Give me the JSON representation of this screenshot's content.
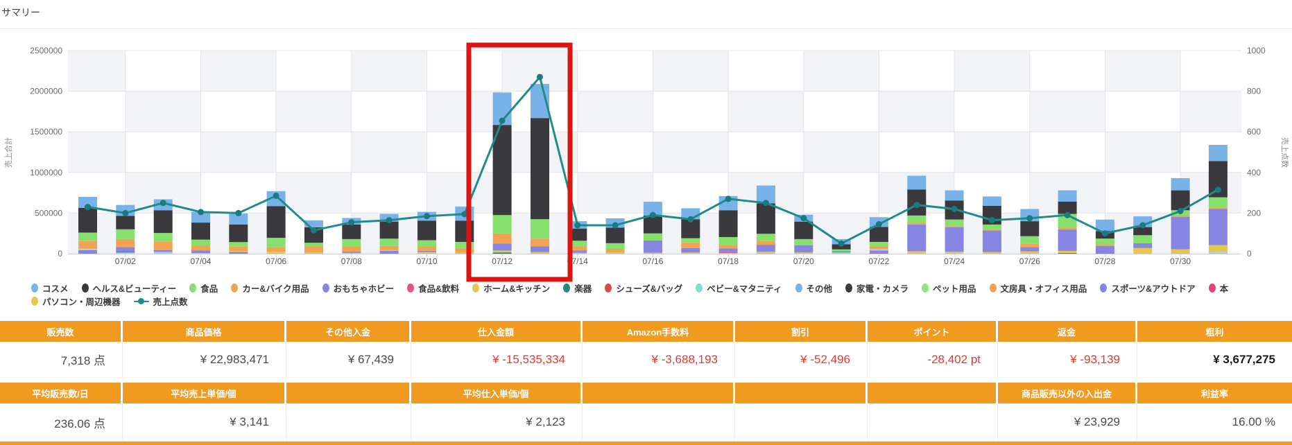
{
  "title": "サマリー",
  "chart_data": {
    "type": "stacked-bar+line",
    "title": "",
    "left_axis": {
      "label": "売上合計",
      "ticks": [
        2500000,
        2000000,
        1500000,
        1000000,
        500000,
        0
      ],
      "max": 2500000
    },
    "right_axis": {
      "label": "売上点数",
      "ticks": [
        1000,
        800,
        600,
        400,
        200,
        0
      ],
      "max": 1000
    },
    "x_tick_labels": [
      "07/02",
      "07/04",
      "07/06",
      "07/08",
      "07/10",
      "07/12",
      "07/14",
      "07/16",
      "07/18",
      "07/20",
      "07/22",
      "07/24",
      "07/26",
      "07/28",
      "07/30"
    ],
    "line_series_name": "売上点数",
    "line_color": "#208b8b",
    "line_dot_color": "#1b7a80",
    "highlight": {
      "dates": "07/12 - 07/13",
      "color": "#dd1511"
    },
    "colors": {
      "blue": "#79b2e8",
      "dark": "#3a3a3e",
      "green": "#86e06c",
      "orange": "#f2a351",
      "purple": "#8686e2",
      "yellow": "#e2c84e",
      "lightblue": "#a6d2f0",
      "red": "#e05050",
      "teal": "#23897d",
      "pink": "#e8558a"
    },
    "days": [
      {
        "date": "07/01",
        "points": 230,
        "segments": [
          [
            "purple",
            45000
          ],
          [
            "lightblue",
            15000
          ],
          [
            "orange",
            95000
          ],
          [
            "green",
            105000
          ],
          [
            "dark",
            305000
          ],
          [
            "blue",
            135000
          ]
        ]
      },
      {
        "date": "07/02",
        "points": 200,
        "segments": [
          [
            "lightblue",
            15000
          ],
          [
            "teal",
            10000
          ],
          [
            "purple",
            55000
          ],
          [
            "orange",
            100000
          ],
          [
            "green",
            120000
          ],
          [
            "dark",
            165000
          ],
          [
            "blue",
            135000
          ]
        ]
      },
      {
        "date": "07/03",
        "points": 250,
        "segments": [
          [
            "lightblue",
            20000
          ],
          [
            "purple",
            25000
          ],
          [
            "orange",
            105000
          ],
          [
            "green",
            105000
          ],
          [
            "dark",
            280000
          ],
          [
            "blue",
            135000
          ]
        ]
      },
      {
        "date": "07/04",
        "points": 205,
        "segments": [
          [
            "yellow",
            8000
          ],
          [
            "purple",
            30000
          ],
          [
            "orange",
            60000
          ],
          [
            "green",
            75000
          ],
          [
            "dark",
            210000
          ],
          [
            "blue",
            132000
          ]
        ]
      },
      {
        "date": "07/05",
        "points": 200,
        "segments": [
          [
            "purple",
            22000
          ],
          [
            "yellow",
            10000
          ],
          [
            "orange",
            55000
          ],
          [
            "green",
            55000
          ],
          [
            "dark",
            218000
          ],
          [
            "blue",
            135000
          ]
        ]
      },
      {
        "date": "07/06",
        "points": 285,
        "segments": [
          [
            "yellow",
            25000
          ],
          [
            "orange",
            55000
          ],
          [
            "green",
            115000
          ],
          [
            "dark",
            390000
          ],
          [
            "blue",
            185000
          ]
        ]
      },
      {
        "date": "07/07",
        "points": 115,
        "segments": [
          [
            "yellow",
            15000
          ],
          [
            "orange",
            75000
          ],
          [
            "green",
            45000
          ],
          [
            "dark",
            190000
          ],
          [
            "blue",
            85000
          ]
        ]
      },
      {
        "date": "07/08",
        "points": 155,
        "segments": [
          [
            "lightblue",
            10000
          ],
          [
            "purple",
            15000
          ],
          [
            "orange",
            65000
          ],
          [
            "green",
            90000
          ],
          [
            "dark",
            180000
          ],
          [
            "blue",
            80000
          ]
        ]
      },
      {
        "date": "07/09",
        "points": 165,
        "segments": [
          [
            "purple",
            35000
          ],
          [
            "yellow",
            10000
          ],
          [
            "orange",
            50000
          ],
          [
            "green",
            90000
          ],
          [
            "dark",
            210000
          ],
          [
            "blue",
            95000
          ]
        ]
      },
      {
        "date": "07/10",
        "points": 185,
        "segments": [
          [
            "yellow",
            20000
          ],
          [
            "purple",
            15000
          ],
          [
            "orange",
            55000
          ],
          [
            "green",
            75000
          ],
          [
            "dark",
            240000
          ],
          [
            "blue",
            110000
          ]
        ]
      },
      {
        "date": "07/11",
        "points": 195,
        "segments": [
          [
            "yellow",
            15000
          ],
          [
            "orange",
            50000
          ],
          [
            "green",
            80000
          ],
          [
            "dark",
            260000
          ],
          [
            "blue",
            175000
          ]
        ]
      },
      {
        "date": "07/12",
        "points": 655,
        "segments": [
          [
            "teal",
            15000
          ],
          [
            "yellow",
            25000
          ],
          [
            "purple",
            85000
          ],
          [
            "orange",
            125000
          ],
          [
            "green",
            225000
          ],
          [
            "dark",
            1110000
          ],
          [
            "blue",
            400000
          ]
        ]
      },
      {
        "date": "07/13",
        "points": 870,
        "segments": [
          [
            "yellow",
            20000
          ],
          [
            "purple",
            70000
          ],
          [
            "orange",
            95000
          ],
          [
            "green",
            240000
          ],
          [
            "dark",
            1245000
          ],
          [
            "blue",
            420000
          ]
        ]
      },
      {
        "date": "07/14",
        "points": 140,
        "segments": [
          [
            "yellow",
            10000
          ],
          [
            "purple",
            30000
          ],
          [
            "orange",
            50000
          ],
          [
            "green",
            70000
          ],
          [
            "dark",
            150000
          ],
          [
            "blue",
            90000
          ]
        ]
      },
      {
        "date": "07/15",
        "points": 140,
        "segments": [
          [
            "yellow",
            15000
          ],
          [
            "orange",
            45000
          ],
          [
            "green",
            70000
          ],
          [
            "dark",
            190000
          ],
          [
            "blue",
            115000
          ]
        ]
      },
      {
        "date": "07/16",
        "points": 190,
        "segments": [
          [
            "yellow",
            12000
          ],
          [
            "purple",
            150000
          ],
          [
            "green",
            88000
          ],
          [
            "dark",
            220000
          ],
          [
            "blue",
            170000
          ]
        ]
      },
      {
        "date": "07/17",
        "points": 170,
        "segments": [
          [
            "yellow",
            15000
          ],
          [
            "purple",
            55000
          ],
          [
            "orange",
            65000
          ],
          [
            "green",
            55000
          ],
          [
            "dark",
            235000
          ],
          [
            "blue",
            135000
          ]
        ]
      },
      {
        "date": "07/18",
        "points": 270,
        "segments": [
          [
            "yellow",
            10000
          ],
          [
            "red",
            10000
          ],
          [
            "purple",
            45000
          ],
          [
            "orange",
            45000
          ],
          [
            "green",
            95000
          ],
          [
            "dark",
            330000
          ],
          [
            "blue",
            175000
          ]
        ]
      },
      {
        "date": "07/19",
        "points": 250,
        "segments": [
          [
            "yellow",
            25000
          ],
          [
            "purple",
            85000
          ],
          [
            "orange",
            45000
          ],
          [
            "green",
            90000
          ],
          [
            "dark",
            375000
          ],
          [
            "blue",
            220000
          ]
        ]
      },
      {
        "date": "07/20",
        "points": 175,
        "segments": [
          [
            "yellow",
            15000
          ],
          [
            "purple",
            90000
          ],
          [
            "green",
            75000
          ],
          [
            "dark",
            215000
          ],
          [
            "blue",
            85000
          ]
        ]
      },
      {
        "date": "07/21",
        "points": 50,
        "segments": [
          [
            "yellow",
            8000
          ],
          [
            "lightblue",
            10000
          ],
          [
            "teal",
            10000
          ],
          [
            "green",
            25000
          ],
          [
            "dark",
            62000
          ],
          [
            "blue",
            65000
          ]
        ]
      },
      {
        "date": "07/22",
        "points": 145,
        "segments": [
          [
            "pink",
            12000
          ],
          [
            "purple",
            28000
          ],
          [
            "lightblue",
            15000
          ],
          [
            "orange",
            30000
          ],
          [
            "green",
            60000
          ],
          [
            "dark",
            185000
          ],
          [
            "blue",
            120000
          ]
        ]
      },
      {
        "date": "07/23",
        "points": 240,
        "segments": [
          [
            "yellow",
            30000
          ],
          [
            "purple",
            330000
          ],
          [
            "orange",
            20000
          ],
          [
            "green",
            90000
          ],
          [
            "dark",
            320000
          ],
          [
            "blue",
            170000
          ]
        ]
      },
      {
        "date": "07/24",
        "points": 220,
        "segments": [
          [
            "yellow",
            25000
          ],
          [
            "purple",
            300000
          ],
          [
            "orange",
            15000
          ],
          [
            "green",
            80000
          ],
          [
            "dark",
            235000
          ],
          [
            "blue",
            125000
          ]
        ]
      },
      {
        "date": "07/25",
        "points": 165,
        "segments": [
          [
            "yellow",
            20000
          ],
          [
            "purple",
            265000
          ],
          [
            "orange",
            15000
          ],
          [
            "green",
            60000
          ],
          [
            "dark",
            230000
          ],
          [
            "blue",
            115000
          ]
        ]
      },
      {
        "date": "07/26",
        "points": 175,
        "segments": [
          [
            "yellow",
            30000
          ],
          [
            "purple",
            50000
          ],
          [
            "orange",
            40000
          ],
          [
            "green",
            95000
          ],
          [
            "dark",
            185000
          ],
          [
            "blue",
            150000
          ]
        ]
      },
      {
        "date": "07/27",
        "points": 190,
        "segments": [
          [
            "red",
            10000
          ],
          [
            "yellow",
            25000
          ],
          [
            "purple",
            265000
          ],
          [
            "orange",
            20000
          ],
          [
            "green",
            170000
          ],
          [
            "dark",
            150000
          ],
          [
            "blue",
            140000
          ]
        ]
      },
      {
        "date": "07/28",
        "points": 100,
        "segments": [
          [
            "red",
            8000
          ],
          [
            "purple",
            88000
          ],
          [
            "orange",
            18000
          ],
          [
            "green",
            72000
          ],
          [
            "dark",
            94000
          ],
          [
            "blue",
            140000
          ]
        ]
      },
      {
        "date": "07/29",
        "points": 140,
        "segments": [
          [
            "yellow",
            70000
          ],
          [
            "purple",
            58000
          ],
          [
            "green",
            100000
          ],
          [
            "dark",
            100000
          ],
          [
            "blue",
            132000
          ]
        ]
      },
      {
        "date": "07/30",
        "points": 210,
        "segments": [
          [
            "yellow",
            55000
          ],
          [
            "purple",
            400000
          ],
          [
            "orange",
            10000
          ],
          [
            "green",
            70000
          ],
          [
            "dark",
            245000
          ],
          [
            "blue",
            150000
          ]
        ]
      },
      {
        "date": "07/31",
        "points": 315,
        "segments": [
          [
            "lightblue",
            20000
          ],
          [
            "yellow",
            85000
          ],
          [
            "purple",
            445000
          ],
          [
            "orange",
            15000
          ],
          [
            "green",
            130000
          ],
          [
            "dark",
            445000
          ],
          [
            "blue",
            200000
          ]
        ]
      }
    ]
  },
  "legend": {
    "row1": [
      {
        "label": "コスメ",
        "color": "#79b2e8",
        "marker": "dot"
      },
      {
        "label": "ヘルス&ビューティー",
        "color": "#3a3a3e",
        "marker": "dot"
      },
      {
        "label": "食品",
        "color": "#86e06c",
        "marker": "dot"
      },
      {
        "label": "カー&バイク用品",
        "color": "#f2a351",
        "marker": "dot"
      },
      {
        "label": "おもちゃホビー",
        "color": "#8686e2",
        "marker": "dot"
      },
      {
        "label": "食品&飲料",
        "color": "#e8547e",
        "marker": "dot"
      },
      {
        "label": "ホーム&キッチン",
        "color": "#e2c84e",
        "marker": "dot"
      },
      {
        "label": "楽器",
        "color": "#23897d",
        "marker": "dot"
      },
      {
        "label": "シューズ&バッグ",
        "color": "#e04848",
        "marker": "dot"
      },
      {
        "label": "ベビー&マタニティ",
        "color": "#7fe0d0",
        "marker": "dot"
      },
      {
        "label": "その他",
        "color": "#79b2e8",
        "marker": "dot"
      },
      {
        "label": "家電・カメラ",
        "color": "#3a3a3e",
        "marker": "dot"
      },
      {
        "label": "ペット用品",
        "color": "#8ce870",
        "marker": "dot"
      },
      {
        "label": "文房具・オフィス用品",
        "color": "#f2a351",
        "marker": "dot"
      },
      {
        "label": "スポーツ&アウトドア",
        "color": "#8686e2",
        "marker": "dot"
      },
      {
        "label": "本",
        "color": "#e8407a",
        "marker": "dot"
      }
    ],
    "row2": [
      {
        "label": "パソコン・周辺機器",
        "color": "#e2c84e",
        "marker": "dot"
      },
      {
        "label": "売上点数",
        "color": "#208b8b",
        "marker": "line"
      }
    ]
  },
  "tables": [
    {
      "headers": [
        "販売数",
        "商品価格",
        "その他入金",
        "仕入金額",
        "Amazon手数料",
        "割引",
        "ポイント",
        "返金",
        "粗利"
      ],
      "values": [
        {
          "text": "7,318 点"
        },
        {
          "text": "¥ 22,983,471"
        },
        {
          "text": "¥ 67,439"
        },
        {
          "text": "¥ -15,535,334",
          "neg": true
        },
        {
          "text": "¥ -3,688,193",
          "neg": true
        },
        {
          "text": "¥ -52,496",
          "neg": true
        },
        {
          "text": "-28,402 pt",
          "neg": true
        },
        {
          "text": "¥ -93,139",
          "neg": true
        },
        {
          "text": "¥ 3,677,275",
          "bold": true
        }
      ]
    },
    {
      "headers": [
        "平均販売数/日",
        "平均売上単価/個",
        "",
        "平均仕入単価/個",
        "",
        "",
        "",
        "商品販売以外の入出金",
        "利益率"
      ],
      "values": [
        {
          "text": "236.06 点"
        },
        {
          "text": "¥ 3,141"
        },
        {
          "text": ""
        },
        {
          "text": "¥ 2,123"
        },
        {
          "text": ""
        },
        {
          "text": ""
        },
        {
          "text": ""
        },
        {
          "text": "¥ 23,929"
        },
        {
          "text": "16.00 %"
        }
      ]
    }
  ]
}
